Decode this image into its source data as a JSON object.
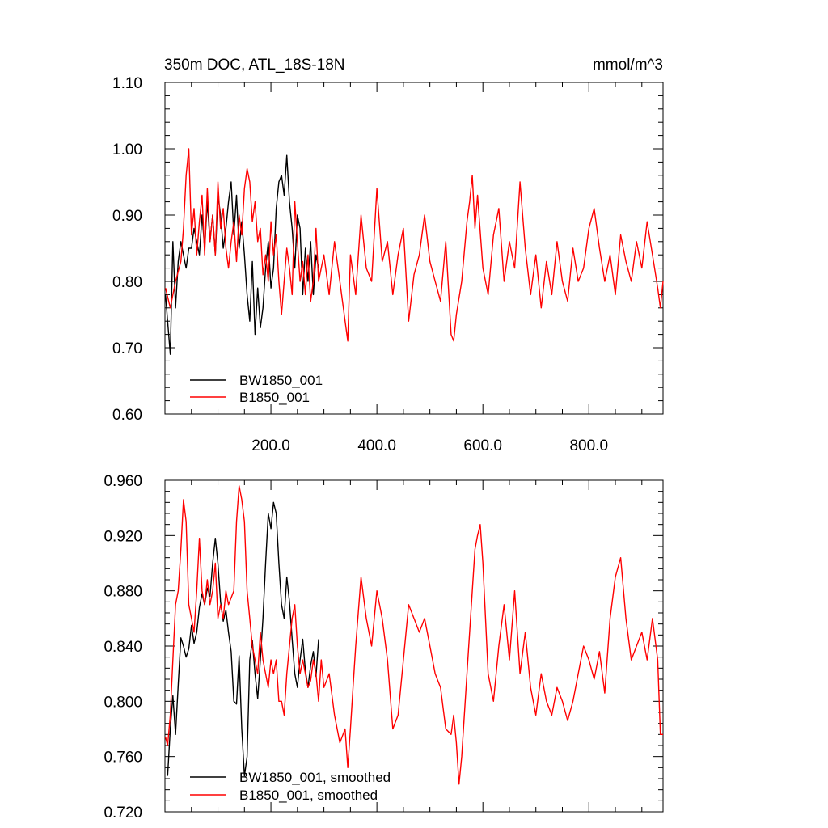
{
  "chart_data": [
    {
      "type": "line",
      "title_left": "350m DOC, ATL_18S-18N",
      "title_right": "mmol/m^3",
      "xlim": [
        0,
        940
      ],
      "ylim": [
        0.6,
        1.1
      ],
      "x_ticks": [
        200,
        400,
        600,
        800
      ],
      "x_tick_labels": [
        "200.0",
        "400.0",
        "600.0",
        "800.0"
      ],
      "y_ticks": [
        0.6,
        0.7,
        0.8,
        0.9,
        1.0,
        1.1
      ],
      "y_tick_labels": [
        "0.60",
        "0.70",
        "0.80",
        "0.90",
        "1.00",
        "1.10"
      ],
      "legend_position": "bottom-left",
      "series": [
        {
          "name": "BW1850_001",
          "color": "#000000",
          "x": [
            1,
            5,
            10,
            15,
            20,
            25,
            30,
            35,
            40,
            45,
            50,
            55,
            60,
            65,
            70,
            75,
            80,
            85,
            90,
            95,
            100,
            105,
            110,
            115,
            120,
            125,
            130,
            135,
            140,
            145,
            150,
            155,
            160,
            165,
            170,
            175,
            180,
            185,
            190,
            195,
            200,
            205,
            210,
            215,
            220,
            225,
            230,
            235,
            240,
            245,
            250,
            255,
            260,
            265,
            270,
            275,
            280,
            285,
            290
          ],
          "values": [
            0.78,
            0.74,
            0.69,
            0.86,
            0.76,
            0.83,
            0.86,
            0.84,
            0.82,
            0.85,
            0.85,
            0.88,
            0.86,
            0.84,
            0.9,
            0.85,
            0.92,
            0.86,
            0.9,
            0.84,
            0.93,
            0.9,
            0.85,
            0.88,
            0.92,
            0.95,
            0.87,
            0.93,
            0.85,
            0.89,
            0.84,
            0.78,
            0.74,
            0.83,
            0.72,
            0.79,
            0.73,
            0.76,
            0.82,
            0.86,
            0.79,
            0.82,
            0.91,
            0.95,
            0.96,
            0.93,
            0.99,
            0.92,
            0.88,
            0.82,
            0.9,
            0.88,
            0.78,
            0.85,
            0.8,
            0.86,
            0.78,
            0.84,
            0.82
          ]
        },
        {
          "name": "B1850_001",
          "color": "#ff0000",
          "x": [
            1,
            10,
            20,
            30,
            35,
            40,
            45,
            50,
            55,
            60,
            65,
            70,
            75,
            80,
            85,
            90,
            95,
            100,
            105,
            110,
            115,
            120,
            125,
            130,
            135,
            140,
            145,
            150,
            155,
            160,
            165,
            170,
            175,
            180,
            185,
            190,
            195,
            200,
            205,
            210,
            215,
            220,
            225,
            230,
            235,
            240,
            245,
            250,
            255,
            260,
            265,
            270,
            275,
            280,
            285,
            290,
            300,
            310,
            320,
            330,
            340,
            345,
            350,
            360,
            370,
            380,
            390,
            400,
            410,
            420,
            430,
            440,
            450,
            460,
            470,
            480,
            490,
            500,
            510,
            520,
            530,
            540,
            545,
            550,
            560,
            570,
            575,
            580,
            585,
            590,
            600,
            610,
            620,
            630,
            640,
            650,
            660,
            670,
            680,
            690,
            700,
            710,
            720,
            730,
            740,
            750,
            760,
            770,
            780,
            790,
            800,
            810,
            820,
            830,
            840,
            850,
            860,
            870,
            880,
            890,
            900,
            910,
            920,
            930,
            935,
            940
          ],
          "values": [
            0.79,
            0.76,
            0.8,
            0.83,
            0.88,
            0.96,
            1.0,
            0.87,
            0.91,
            0.84,
            0.89,
            0.93,
            0.84,
            0.94,
            0.86,
            0.9,
            0.84,
            0.95,
            0.88,
            0.91,
            0.85,
            0.82,
            0.86,
            0.89,
            0.83,
            0.9,
            0.87,
            0.94,
            0.97,
            0.95,
            0.89,
            0.92,
            0.86,
            0.88,
            0.81,
            0.84,
            0.8,
            0.89,
            0.84,
            0.87,
            0.8,
            0.75,
            0.8,
            0.85,
            0.82,
            0.78,
            0.92,
            0.86,
            0.8,
            0.83,
            0.78,
            0.84,
            0.77,
            0.8,
            0.88,
            0.8,
            0.84,
            0.78,
            0.86,
            0.8,
            0.74,
            0.71,
            0.84,
            0.78,
            0.9,
            0.82,
            0.8,
            0.94,
            0.83,
            0.86,
            0.78,
            0.84,
            0.88,
            0.74,
            0.81,
            0.84,
            0.9,
            0.83,
            0.8,
            0.77,
            0.86,
            0.72,
            0.71,
            0.75,
            0.8,
            0.89,
            0.92,
            0.96,
            0.88,
            0.93,
            0.82,
            0.78,
            0.87,
            0.91,
            0.8,
            0.86,
            0.82,
            0.95,
            0.85,
            0.78,
            0.84,
            0.76,
            0.83,
            0.78,
            0.86,
            0.8,
            0.77,
            0.85,
            0.8,
            0.82,
            0.88,
            0.91,
            0.85,
            0.8,
            0.84,
            0.78,
            0.87,
            0.83,
            0.8,
            0.86,
            0.82,
            0.89,
            0.84,
            0.79,
            0.76,
            0.8
          ]
        }
      ]
    },
    {
      "type": "line",
      "xlim": [
        0,
        940
      ],
      "ylim": [
        0.72,
        0.96
      ],
      "y_ticks": [
        0.72,
        0.76,
        0.8,
        0.84,
        0.88,
        0.92,
        0.96
      ],
      "y_tick_labels": [
        "0.720",
        "0.760",
        "0.800",
        "0.840",
        "0.880",
        "0.920",
        "0.960"
      ],
      "legend_position": "bottom-left",
      "series": [
        {
          "name": "BW1850_001, smoothed",
          "color": "#000000",
          "x": [
            5,
            10,
            15,
            20,
            25,
            30,
            35,
            40,
            45,
            50,
            55,
            60,
            65,
            70,
            75,
            80,
            85,
            90,
            95,
            100,
            105,
            110,
            115,
            120,
            125,
            130,
            135,
            140,
            145,
            150,
            155,
            160,
            165,
            170,
            175,
            180,
            185,
            190,
            195,
            200,
            205,
            210,
            215,
            220,
            225,
            230,
            235,
            240,
            245,
            250,
            255,
            260,
            265,
            270,
            275,
            280,
            285,
            290
          ],
          "values": [
            0.746,
            0.78,
            0.804,
            0.776,
            0.812,
            0.846,
            0.84,
            0.832,
            0.838,
            0.855,
            0.842,
            0.85,
            0.868,
            0.878,
            0.87,
            0.882,
            0.876,
            0.9,
            0.918,
            0.9,
            0.872,
            0.858,
            0.866,
            0.85,
            0.836,
            0.8,
            0.798,
            0.833,
            0.78,
            0.746,
            0.76,
            0.83,
            0.844,
            0.82,
            0.802,
            0.83,
            0.86,
            0.9,
            0.936,
            0.925,
            0.944,
            0.936,
            0.9,
            0.87,
            0.86,
            0.89,
            0.872,
            0.845,
            0.82,
            0.81,
            0.83,
            0.845,
            0.822,
            0.81,
            0.826,
            0.836,
            0.818,
            0.845
          ]
        },
        {
          "name": "B1850_001, smoothed",
          "color": "#ff0000",
          "x": [
            1,
            5,
            10,
            15,
            20,
            25,
            30,
            35,
            40,
            45,
            50,
            55,
            60,
            65,
            70,
            75,
            80,
            85,
            90,
            95,
            100,
            105,
            110,
            115,
            120,
            125,
            130,
            135,
            140,
            145,
            150,
            155,
            160,
            165,
            170,
            175,
            180,
            185,
            190,
            195,
            200,
            205,
            210,
            215,
            220,
            225,
            230,
            235,
            240,
            245,
            250,
            255,
            260,
            265,
            270,
            275,
            280,
            285,
            290,
            295,
            300,
            310,
            320,
            330,
            340,
            345,
            350,
            355,
            360,
            370,
            380,
            390,
            400,
            410,
            420,
            430,
            440,
            450,
            460,
            470,
            480,
            490,
            500,
            510,
            520,
            530,
            540,
            545,
            550,
            555,
            560,
            570,
            580,
            585,
            590,
            595,
            600,
            610,
            620,
            630,
            640,
            650,
            660,
            670,
            680,
            690,
            700,
            710,
            720,
            730,
            740,
            750,
            760,
            770,
            780,
            790,
            800,
            810,
            820,
            830,
            840,
            850,
            860,
            870,
            880,
            890,
            900,
            910,
            920,
            930,
            935,
            940
          ],
          "values": [
            0.774,
            0.768,
            0.79,
            0.83,
            0.87,
            0.88,
            0.91,
            0.946,
            0.93,
            0.87,
            0.86,
            0.85,
            0.88,
            0.918,
            0.88,
            0.87,
            0.888,
            0.87,
            0.88,
            0.9,
            0.86,
            0.87,
            0.86,
            0.88,
            0.87,
            0.875,
            0.88,
            0.93,
            0.956,
            0.946,
            0.93,
            0.88,
            0.86,
            0.84,
            0.83,
            0.82,
            0.85,
            0.83,
            0.82,
            0.81,
            0.83,
            0.82,
            0.83,
            0.8,
            0.8,
            0.79,
            0.82,
            0.84,
            0.86,
            0.87,
            0.84,
            0.82,
            0.83,
            0.82,
            0.81,
            0.815,
            0.83,
            0.82,
            0.8,
            0.83,
            0.81,
            0.82,
            0.79,
            0.77,
            0.78,
            0.752,
            0.78,
            0.81,
            0.84,
            0.89,
            0.86,
            0.84,
            0.88,
            0.86,
            0.83,
            0.78,
            0.79,
            0.83,
            0.87,
            0.86,
            0.85,
            0.86,
            0.84,
            0.82,
            0.81,
            0.78,
            0.776,
            0.79,
            0.77,
            0.74,
            0.76,
            0.82,
            0.88,
            0.91,
            0.92,
            0.928,
            0.9,
            0.82,
            0.8,
            0.84,
            0.87,
            0.83,
            0.88,
            0.82,
            0.85,
            0.81,
            0.79,
            0.82,
            0.8,
            0.79,
            0.81,
            0.8,
            0.786,
            0.8,
            0.82,
            0.84,
            0.83,
            0.816,
            0.836,
            0.806,
            0.86,
            0.89,
            0.904,
            0.86,
            0.83,
            0.84,
            0.85,
            0.83,
            0.86,
            0.83,
            0.776,
            0.776
          ]
        }
      ]
    }
  ]
}
